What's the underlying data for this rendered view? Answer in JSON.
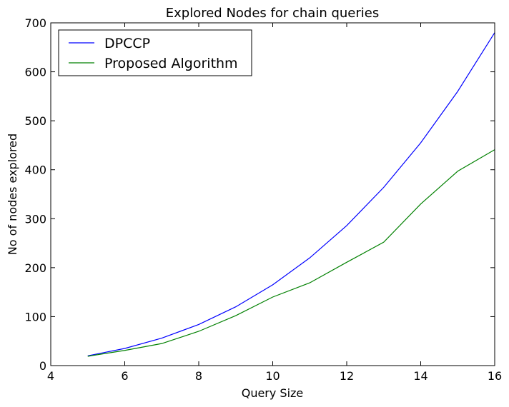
{
  "chart_data": {
    "type": "line",
    "title": "Explored Nodes for chain queries",
    "xlabel": "Query Size",
    "ylabel": "No of nodes explored",
    "xlim": [
      4,
      16
    ],
    "ylim": [
      0,
      700
    ],
    "xticks": [
      4,
      6,
      8,
      10,
      12,
      14,
      16
    ],
    "yticks": [
      0,
      100,
      200,
      300,
      400,
      500,
      600,
      700
    ],
    "grid": false,
    "legend_position": "top-left",
    "x": [
      5,
      6,
      7,
      8,
      9,
      10,
      11,
      12,
      13,
      14,
      15,
      16
    ],
    "series": [
      {
        "name": "DPCCP",
        "color": "#0000ff",
        "values": [
          20,
          35,
          56,
          84,
          120,
          165,
          220,
          286,
          364,
          455,
          560,
          680
        ]
      },
      {
        "name": "Proposed Algorithm",
        "color": "#008000",
        "values": [
          19,
          31,
          45,
          70,
          102,
          140,
          169,
          211,
          252,
          330,
          397,
          441
        ]
      }
    ]
  }
}
